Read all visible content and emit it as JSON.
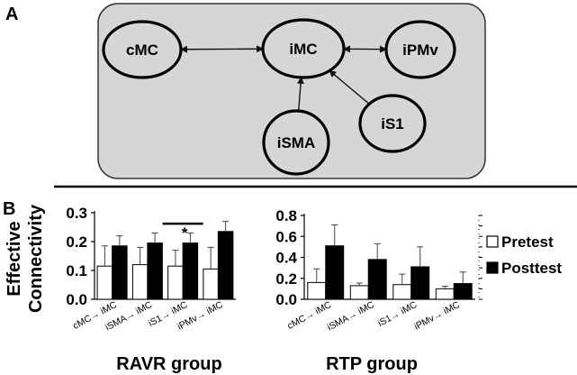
{
  "panel_a": {
    "label": "A",
    "nodes": [
      {
        "id": "cMC",
        "label": "cMC"
      },
      {
        "id": "iMC",
        "label": "iMC"
      },
      {
        "id": "iPMv",
        "label": "iPMv"
      },
      {
        "id": "iS1",
        "label": "iS1"
      },
      {
        "id": "iSMA",
        "label": "iSMA"
      }
    ],
    "edges": [
      {
        "from": "cMC",
        "to": "iMC",
        "bidirectional": true
      },
      {
        "from": "iPMv",
        "to": "iMC",
        "bidirectional": true
      },
      {
        "from": "iSMA",
        "to": "iMC",
        "bidirectional": false
      },
      {
        "from": "iS1",
        "to": "iMC",
        "bidirectional": false
      }
    ]
  },
  "panel_b": {
    "label": "B",
    "ylabel_line1": "Effective",
    "ylabel_line2": "Connectivity",
    "legend": {
      "pretest": "Pretest",
      "posttest": "Posttest",
      "placement": "right"
    },
    "colors": {
      "pretest": "#ffffff",
      "posttest": "#000000"
    }
  },
  "chart_data": [
    {
      "type": "bar",
      "title": "RAVR group",
      "categories": [
        "cMC→ iMC",
        "iSMA→ iMC",
        "iS1→ iMC",
        "iPMv→ iMC"
      ],
      "series": [
        {
          "name": "Pretest",
          "values": [
            0.115,
            0.12,
            0.115,
            0.105
          ],
          "errors": [
            0.07,
            0.06,
            0.055,
            0.075
          ]
        },
        {
          "name": "Posttest",
          "values": [
            0.185,
            0.195,
            0.195,
            0.235
          ],
          "errors": [
            0.035,
            0.035,
            0.035,
            0.035
          ]
        }
      ],
      "ylim": [
        0,
        0.3
      ],
      "yticks": [
        "0.0",
        "0.1",
        "0.2",
        "0.3"
      ],
      "significance": {
        "category_index": 2,
        "symbol": "*"
      }
    },
    {
      "type": "bar",
      "title": "RTP group",
      "categories": [
        "cMC→ iMC",
        "iSMA→ iMC",
        "iS1→ iMC",
        "iPMv→ iMC"
      ],
      "series": [
        {
          "name": "Pretest",
          "values": [
            0.16,
            0.13,
            0.14,
            0.1
          ],
          "errors": [
            0.13,
            0.025,
            0.1,
            0.025
          ]
        },
        {
          "name": "Posttest",
          "values": [
            0.51,
            0.38,
            0.31,
            0.15
          ],
          "errors": [
            0.2,
            0.15,
            0.19,
            0.11
          ]
        }
      ],
      "ylim": [
        0,
        0.8
      ],
      "yticks": [
        "0.0",
        "0.2",
        "0.4",
        "0.6",
        "0.8"
      ]
    }
  ]
}
